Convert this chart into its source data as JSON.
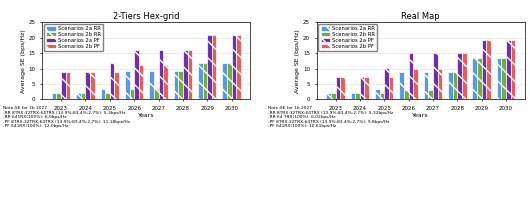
{
  "years": [
    "2023",
    "2024",
    "2025",
    "2026",
    "2027",
    "2028",
    "2029",
    "2030"
  ],
  "hex_grid": {
    "title": "2-Tiers Hex-grid",
    "scenarios_2a_RR": [
      2.0,
      2.0,
      3.5,
      9.3,
      9.3,
      9.3,
      11.8,
      11.8
    ],
    "scenarios_2b_RR": [
      2.2,
      2.2,
      2.2,
      3.3,
      3.3,
      9.3,
      11.8,
      11.8
    ],
    "scenarios_2a_PF": [
      9.0,
      9.0,
      11.7,
      16.1,
      16.1,
      16.1,
      20.8,
      20.8
    ],
    "scenarios_2b_PF": [
      9.0,
      9.0,
      9.0,
      11.2,
      11.2,
      16.1,
      20.8,
      20.8
    ]
  },
  "real_map": {
    "title": "Real Map",
    "scenarios_2a_RR": [
      2.0,
      2.0,
      3.5,
      9.0,
      9.0,
      9.0,
      13.5,
      13.5
    ],
    "scenarios_2b_RR": [
      2.2,
      2.2,
      2.2,
      3.1,
      3.1,
      9.0,
      13.5,
      13.5
    ],
    "scenarios_2a_PF": [
      7.3,
      7.3,
      10.1,
      14.9,
      14.9,
      14.9,
      19.1,
      19.1
    ],
    "scenarios_2b_PF": [
      7.3,
      7.3,
      7.3,
      9.7,
      9.7,
      14.9,
      19.1,
      19.1
    ]
  },
  "colors": {
    "2a_RR": "#5B9BD5",
    "2b_RR": "#70AD47",
    "2a_PF": "#7030A0",
    "2b_PF": "#E06060"
  },
  "ylabel": "Average SE (bps/Hz)",
  "xlabel": "Years",
  "ylim": [
    0,
    25
  ],
  "yticks": [
    0,
    5,
    10,
    15,
    20,
    25
  ],
  "legend_labels": [
    "Scenarios 2a RR",
    "Scenarios 2b RR",
    "Scenarios 2a PF",
    "Scenarios 2b PF"
  ],
  "note_hex": "Note:SE for 1b 2027\n-RR 8TRX:32TRX:64TRX (13.9%:83.4%:2.7%): 5.3bps/Hz\n-RR 641RX(100%): 6.0bps/Hz\n-PF 8TRX:32TRX:64TRX (13.9%:83.4%:2.7%): 11.18bps/Hz\n-PF 641RX(100%): 12.0bps/Hz",
  "note_real": "Note:SE for 1b 2027\n-RR 8TRX:32TRX:64TRX (13.9%:83.4%:2.7%): 5.32bps/Hz\n-RR 64 TRX(100%): 6.02bps/Hz\n-PF 8TRX:32TRX:64TRX (13.9%:83.4%:2.7%): 9.8bps/Hz\n-PF 641RX(100%): 10.61bps/Hz"
}
